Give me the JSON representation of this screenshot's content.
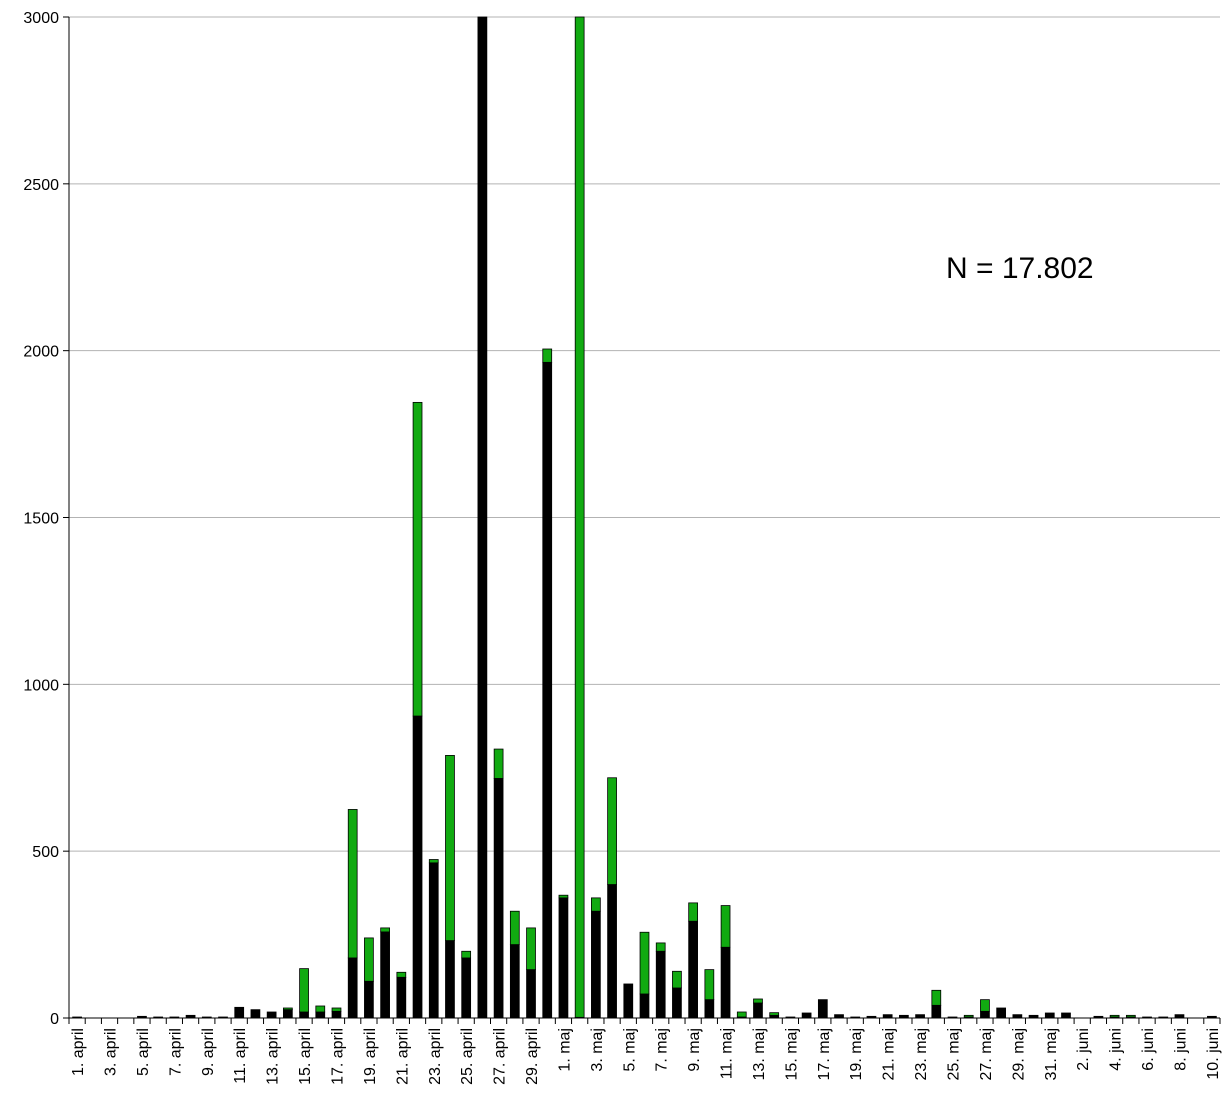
{
  "chart_data": {
    "type": "bar",
    "stacked": true,
    "title": "",
    "xlabel": "",
    "ylabel": "",
    "ylim": [
      0,
      3000
    ],
    "yticks": [
      0,
      500,
      1000,
      1500,
      2000,
      2500,
      3000
    ],
    "grid": true,
    "annotation": "N = 17.802",
    "colors": {
      "black": "#000000",
      "green": "#11aa11",
      "grid": "#b3b3b3"
    },
    "categories": [
      "1. april",
      "2. april",
      "3. april",
      "4. april",
      "5. april",
      "6. april",
      "7. april",
      "8. april",
      "9. april",
      "10. april",
      "11. april",
      "12. april",
      "13. april",
      "14. april",
      "15. april",
      "16. april",
      "17. april",
      "18. april",
      "19. april",
      "20. april",
      "21. april",
      "22. april",
      "23. april",
      "24. april",
      "25. april",
      "26. april",
      "27. april",
      "28. april",
      "29. april",
      "30. april",
      "1. maj",
      "2. maj",
      "3. maj",
      "4. maj",
      "5. maj",
      "6. maj",
      "7. maj",
      "8. maj",
      "9. maj",
      "10. maj",
      "11. maj",
      "12. maj",
      "13. maj",
      "14. maj",
      "15. maj",
      "16. maj",
      "17. maj",
      "18. maj",
      "19. maj",
      "20. maj",
      "21. maj",
      "22. maj",
      "23. maj",
      "24. maj",
      "25. maj",
      "26. maj",
      "27. maj",
      "28. maj",
      "29. maj",
      "30. maj",
      "31. maj",
      "1. juni",
      "2. juni",
      "3. juni",
      "4. juni",
      "5. juni",
      "6. juni",
      "7. juni",
      "8. juni",
      "9. juni",
      "10. juni"
    ],
    "tick_labels": [
      "1. april",
      "3. april",
      "5. april",
      "7. april",
      "9. april",
      "11. april",
      "13. april",
      "15. april",
      "17. april",
      "19. april",
      "21. april",
      "23. april",
      "25. april",
      "27. april",
      "29. april",
      "1. maj",
      "3. maj",
      "5. maj",
      "7. maj",
      "9. maj",
      "11. maj",
      "13. maj",
      "15. maj",
      "17. maj",
      "19. maj",
      "21. maj",
      "23. maj",
      "25. maj",
      "27. maj",
      "29. maj",
      "31. maj",
      "2. juni",
      "4. juni",
      "6. juni",
      "8. juni",
      "10. juni"
    ],
    "series": [
      {
        "color": "black",
        "values": [
          3,
          0,
          0,
          0,
          5,
          3,
          3,
          8,
          3,
          3,
          32,
          25,
          18,
          25,
          18,
          18,
          20,
          180,
          110,
          258,
          122,
          905,
          465,
          232,
          180,
          3000,
          718,
          220,
          145,
          1965,
          360,
          2,
          320,
          400,
          102,
          72,
          200,
          90,
          290,
          55,
          212,
          3,
          45,
          8,
          3,
          15,
          55,
          10,
          3,
          5,
          10,
          8,
          10,
          38,
          3,
          3,
          20,
          30,
          10,
          8,
          15,
          15,
          0,
          5,
          3,
          3,
          3,
          3,
          10,
          0,
          5
        ]
      },
      {
        "color": "green",
        "values": [
          0,
          0,
          0,
          0,
          0,
          0,
          0,
          0,
          0,
          0,
          0,
          0,
          0,
          5,
          130,
          18,
          10,
          445,
          130,
          12,
          15,
          940,
          10,
          555,
          20,
          0,
          88,
          100,
          125,
          40,
          8,
          3000,
          40,
          320,
          0,
          185,
          25,
          50,
          55,
          90,
          125,
          15,
          12,
          8,
          0,
          0,
          0,
          0,
          0,
          0,
          0,
          0,
          0,
          45,
          0,
          5,
          35,
          0,
          0,
          0,
          0,
          0,
          0,
          0,
          5,
          5,
          0,
          0,
          0,
          0,
          0
        ]
      }
    ]
  }
}
